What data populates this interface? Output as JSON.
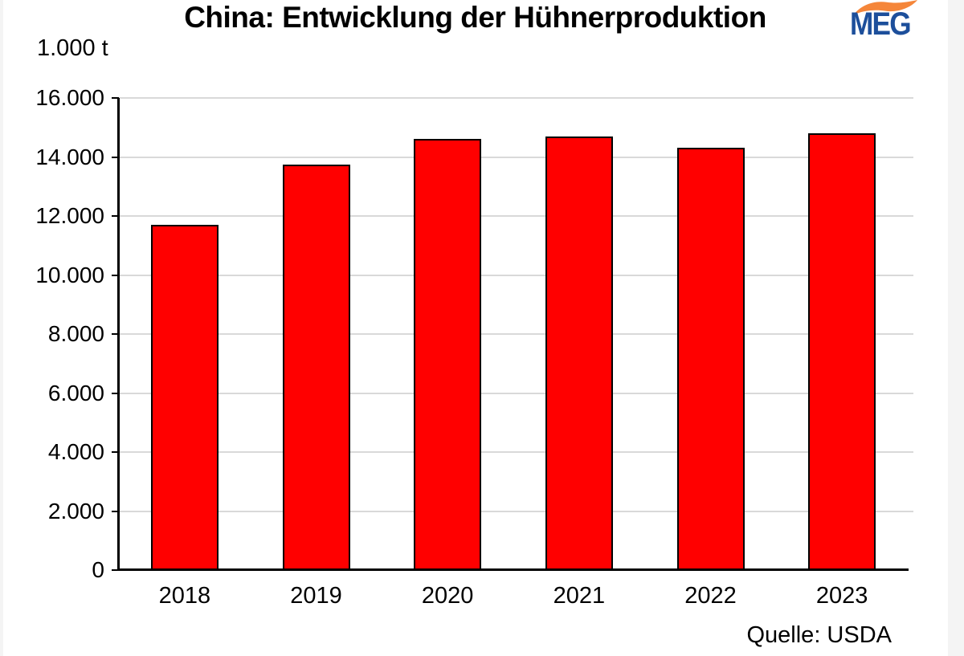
{
  "title": "China: Entwicklung der Hühnerproduktion",
  "y_axis_unit": "1.000 t",
  "source": "Quelle: USDA",
  "logo": {
    "text": "MEG",
    "text_color": "#1d4f9b",
    "swoosh_color": "#f5863a"
  },
  "chart_data": {
    "type": "bar",
    "categories": [
      "2018",
      "2019",
      "2020",
      "2021",
      "2022",
      "2023"
    ],
    "values": [
      11700,
      13750,
      14600,
      14700,
      14300,
      14800
    ],
    "title": "China: Entwicklung der Hühnerproduktion",
    "xlabel": "",
    "ylabel": "1.000 t",
    "ylim": [
      0,
      16000
    ],
    "ytick_step": 2000,
    "ytick_labels": [
      "0",
      "2.000",
      "4.000",
      "6.000",
      "8.000",
      "10.000",
      "12.000",
      "14.000",
      "16.000"
    ],
    "bar_color": "#ff0000",
    "bar_border_color": "#000000",
    "gridline_color": "#d9d9d9",
    "axis_color": "#000000",
    "grid": true,
    "legend": "none",
    "source": "Quelle: USDA"
  }
}
